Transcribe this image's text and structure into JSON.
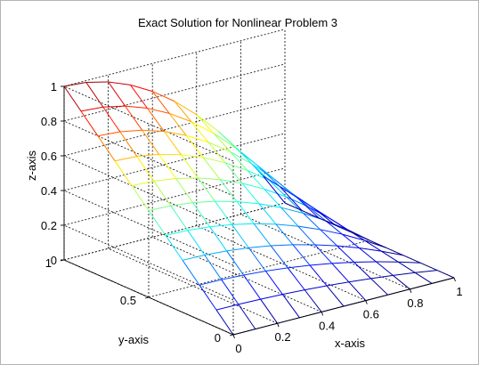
{
  "figure": {
    "colors": {
      "background": "#ffffff",
      "frame": "#b4b4b4"
    }
  },
  "chart_data": {
    "type": "surface",
    "title": "Exact Solution for Nonlinear Problem 3",
    "xlabel": "x-axis",
    "ylabel": "y-axis",
    "zlabel": "z-axis",
    "xlim": [
      0,
      1
    ],
    "ylim": [
      0,
      1
    ],
    "zlim": [
      0,
      1
    ],
    "xticks": [
      "0",
      "0.2",
      "0.4",
      "0.6",
      "0.8",
      "1"
    ],
    "yticks": [
      "0",
      "0.5",
      "1"
    ],
    "zticks": [
      "0",
      "0.2",
      "0.4",
      "0.6",
      "0.8",
      "1"
    ],
    "grid": true,
    "colormap": "jet",
    "mesh": {
      "nx": 11,
      "ny": 11
    },
    "x": [
      0,
      0.1,
      0.2,
      0.3,
      0.4,
      0.5,
      0.6,
      0.7,
      0.8,
      0.9,
      1.0
    ],
    "y": [
      0,
      0.1,
      0.2,
      0.3,
      0.4,
      0.5,
      0.6,
      0.7,
      0.8,
      0.9,
      1.0
    ],
    "z_along_x_at_y1": [
      1.0,
      0.99,
      0.96,
      0.91,
      0.84,
      0.75,
      0.64,
      0.51,
      0.36,
      0.19,
      0.0
    ],
    "z_along_y_at_x0": [
      0.0,
      0.1,
      0.2,
      0.3,
      0.4,
      0.5,
      0.6,
      0.7,
      0.8,
      0.9,
      1.0
    ]
  }
}
